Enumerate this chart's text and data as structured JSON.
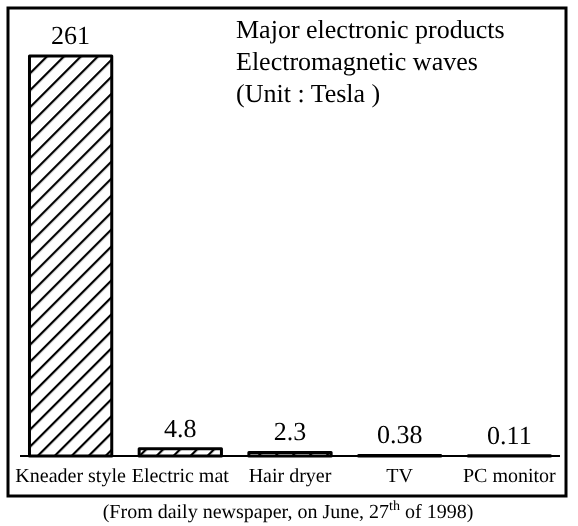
{
  "chart_data": {
    "type": "bar",
    "title": "Major electronic products\nElectromagnetic waves\n(Unit : Tesla )",
    "categories": [
      "Kneader style",
      "Electric mat",
      "Hair dryer",
      "TV",
      "PC monitor"
    ],
    "values": [
      261,
      4.8,
      2.3,
      0.38,
      0.11
    ],
    "color": "#000000",
    "data_labels": true,
    "annotations": [
      "(From daily newspaper, on June, 27$^{th}$ of 1998)"
    ]
  }
}
